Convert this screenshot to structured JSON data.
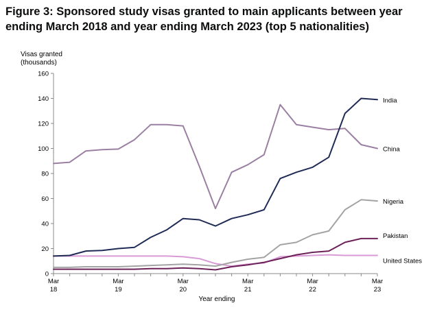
{
  "figure": {
    "title": "Figure 3: Sponsored study visas granted to main applicants between year ending March 2018 and year ending March 2023 (top 5 nationalities)"
  },
  "chart_data": {
    "type": "line",
    "title": "Figure 3: Sponsored study visas granted to main applicants between year ending March 2018 and year ending March 2023 (top 5 nationalities)",
    "ylabel": "Visas granted",
    "ylabel_unit": "(thousands)",
    "xlabel": "Year ending",
    "ylim": [
      0,
      160
    ],
    "yticks": [
      "0",
      "20",
      "40",
      "60",
      "80",
      "100",
      "120",
      "140",
      "160"
    ],
    "xlim": [
      0,
      20
    ],
    "xticks": [
      {
        "pos": 0,
        "line1": "Mar",
        "line2": "18"
      },
      {
        "pos": 4,
        "line1": "Mar",
        "line2": "19"
      },
      {
        "pos": 8,
        "line1": "Mar",
        "line2": "20"
      },
      {
        "pos": 12,
        "line1": "Mar",
        "line2": "21"
      },
      {
        "pos": 16,
        "line1": "Mar",
        "line2": "22"
      },
      {
        "pos": 20,
        "line1": "Mar",
        "line2": "23"
      }
    ],
    "grid": false,
    "series": [
      {
        "name": "China",
        "color": "#9a7fa3",
        "values": [
          88,
          89,
          98,
          99,
          99.5,
          107,
          119,
          119,
          118,
          86,
          52,
          81,
          87,
          95,
          135,
          119,
          117,
          115,
          116,
          103,
          100
        ]
      },
      {
        "name": "India",
        "color": "#1f2a55",
        "values": [
          14,
          14.5,
          18,
          18.5,
          20,
          21,
          29,
          35,
          44,
          43,
          38,
          44,
          47,
          51,
          76,
          81,
          85,
          93,
          128,
          140,
          139
        ]
      },
      {
        "name": "Nigeria",
        "color": "#a3a3a3",
        "values": [
          5,
          5,
          5.5,
          5.5,
          5.5,
          6,
          6.5,
          7,
          7.5,
          7,
          6,
          9,
          11.5,
          13,
          23,
          25,
          31,
          34,
          51,
          59,
          58
        ]
      },
      {
        "name": "Pakistan",
        "color": "#6b2158",
        "values": [
          3.5,
          3.5,
          3.5,
          3.5,
          3.5,
          3.5,
          4,
          4,
          4.5,
          4,
          3,
          5.5,
          7,
          9,
          12,
          15,
          17,
          18,
          25,
          28,
          28
        ]
      },
      {
        "name": "United States",
        "color": "#d99ad6",
        "values": [
          14,
          14,
          14,
          14,
          14,
          14,
          14,
          14,
          13.5,
          12,
          8,
          6,
          7.5,
          8.5,
          13.5,
          14,
          14.5,
          15,
          14.5,
          14.5,
          14.5
        ]
      }
    ]
  }
}
